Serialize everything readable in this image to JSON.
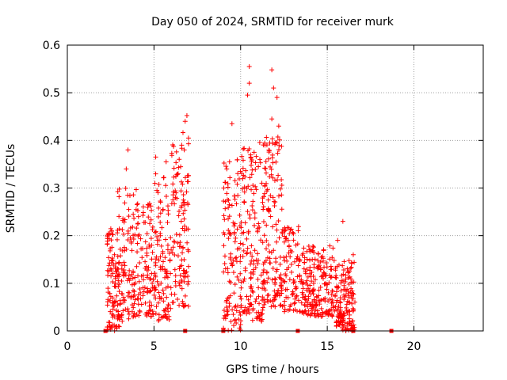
{
  "chart_data": {
    "type": "scatter",
    "title": "Day 050 of 2024, SRMTID for receiver murk",
    "xlabel": "GPS time / hours",
    "ylabel": "SRMTID / TECUs",
    "xlim": [
      0,
      24
    ],
    "ylim": [
      0,
      0.6
    ],
    "xticks": [
      0,
      5,
      10,
      15,
      20
    ],
    "yticks": [
      0,
      0.1,
      0.2,
      0.3,
      0.4,
      0.5,
      0.6
    ],
    "xtick_labels": [
      "0",
      "5",
      "10",
      "15",
      "20"
    ],
    "ytick_labels": [
      "0",
      "0.1",
      "0.2",
      "0.3",
      "0.4",
      "0.5",
      "0.6"
    ],
    "grid": true,
    "marker": "+",
    "series_color": "#ff0000",
    "zero_square_x": [
      2.2,
      6.8,
      9.0,
      13.3,
      16.5,
      18.7
    ],
    "highlight_points": [
      [
        10.5,
        0.555
      ],
      [
        11.8,
        0.548
      ],
      [
        10.5,
        0.52
      ],
      [
        10.4,
        0.495
      ],
      [
        11.9,
        0.51
      ],
      [
        12.1,
        0.49
      ],
      [
        6.9,
        0.452
      ],
      [
        6.8,
        0.44
      ],
      [
        11.8,
        0.445
      ],
      [
        12.2,
        0.43
      ],
      [
        9.5,
        0.435
      ],
      [
        6.6,
        0.39
      ],
      [
        3.5,
        0.38
      ],
      [
        5.1,
        0.365
      ],
      [
        5.7,
        0.355
      ],
      [
        3.4,
        0.34
      ],
      [
        15.9,
        0.23
      ],
      [
        15.6,
        0.19
      ],
      [
        16.5,
        0.16
      ],
      [
        9.2,
        0.34
      ]
    ],
    "clusters": [
      {
        "x": [
          2.3,
          3.0
        ],
        "y": [
          0.0,
          0.22
        ],
        "n": 110
      },
      {
        "x": [
          2.9,
          4.0
        ],
        "y": [
          0.02,
          0.3
        ],
        "n": 110
      },
      {
        "x": [
          4.0,
          5.0
        ],
        "y": [
          0.03,
          0.27
        ],
        "n": 100
      },
      {
        "x": [
          5.0,
          6.0
        ],
        "y": [
          0.02,
          0.33
        ],
        "n": 110
      },
      {
        "x": [
          6.0,
          7.0
        ],
        "y": [
          0.05,
          0.42
        ],
        "n": 120
      },
      {
        "x": [
          9.0,
          10.0
        ],
        "y": [
          0.0,
          0.36
        ],
        "n": 120
      },
      {
        "x": [
          10.0,
          11.3
        ],
        "y": [
          0.02,
          0.4
        ],
        "n": 160
      },
      {
        "x": [
          11.3,
          12.4
        ],
        "y": [
          0.05,
          0.42
        ],
        "n": 150
      },
      {
        "x": [
          12.4,
          13.5
        ],
        "y": [
          0.04,
          0.22
        ],
        "n": 90
      },
      {
        "x": [
          13.5,
          15.5
        ],
        "y": [
          0.03,
          0.18
        ],
        "n": 200
      },
      {
        "x": [
          15.5,
          16.6
        ],
        "y": [
          0.0,
          0.15
        ],
        "n": 150
      }
    ]
  }
}
